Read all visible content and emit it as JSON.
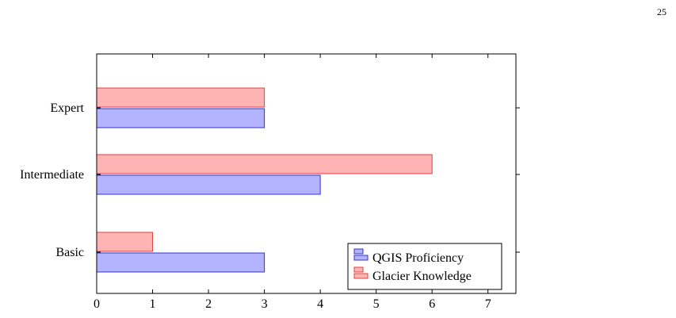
{
  "page_number": "25",
  "chart_data": {
    "type": "bar",
    "orientation": "horizontal",
    "categories": [
      "Basic",
      "Intermediate",
      "Expert"
    ],
    "series": [
      {
        "name": "QGIS Proficiency",
        "values": [
          3,
          4,
          3
        ],
        "fill": "#b3b3ff",
        "stroke": "#3333cc"
      },
      {
        "name": "Glacier Knowledge",
        "values": [
          1,
          6,
          3
        ],
        "fill": "#ffb3b3",
        "stroke": "#e04040"
      }
    ],
    "x_ticks": [
      0,
      1,
      2,
      3,
      4,
      5,
      6,
      7
    ],
    "xlim": [
      0,
      7.5
    ],
    "title": "",
    "xlabel": "",
    "ylabel": "",
    "grid": false,
    "legend_position": "bottom-right"
  }
}
